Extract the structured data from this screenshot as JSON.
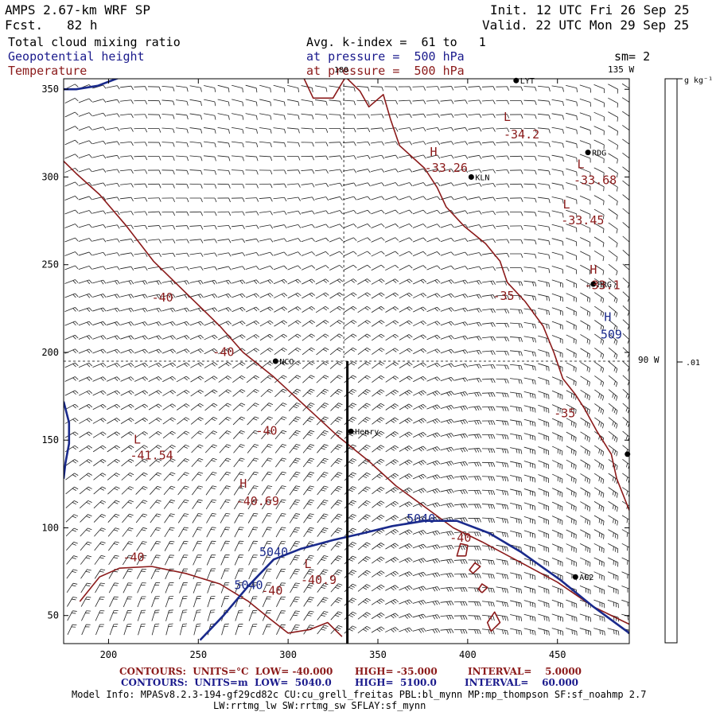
{
  "header": {
    "model": "AMPS 2.67-km WRF SP",
    "fcst_label": "Fcst.",
    "fcst_value": "82 h",
    "init": "Init. 12 UTC Fri 26 Sep 25",
    "valid": "Valid. 22 UTC Mon 29 Sep 25",
    "field1": "Total cloud mixing ratio",
    "field2": "Geopotential height",
    "field3": "Temperature",
    "avg": "Avg. k-index =  61 to   1",
    "pressure1": "at pressure =  500 hPa",
    "pressure2": "at pressure =  500 hPa",
    "sm": "sm= 2"
  },
  "colorbar": {
    "unit": "g kg⁻¹",
    "tick": ".01"
  },
  "grid_labels": {
    "top_180": "180",
    "top_135w": "135 W",
    "right_90w": "90 W"
  },
  "stations": [
    {
      "name": "LYT",
      "i": 427,
      "j": 355
    },
    {
      "name": "RDG",
      "i": 467,
      "j": 314
    },
    {
      "name": "KLN",
      "i": 402,
      "j": 300
    },
    {
      "name": "HRG",
      "i": 470,
      "j": 239
    },
    {
      "name": "NCO",
      "i": 293,
      "j": 195
    },
    {
      "name": "Henry",
      "i": 335,
      "j": 155
    },
    {
      "name": "AG2",
      "i": 460,
      "j": 72
    },
    {
      "name": "",
      "i": 489,
      "j": 142
    }
  ],
  "temp_labels": [
    {
      "text": "L",
      "i": 420,
      "j": 332
    },
    {
      "text": "-34.2",
      "i": 420,
      "j": 322
    },
    {
      "text": "H",
      "i": 379,
      "j": 312
    },
    {
      "text": "-33.26",
      "i": 376,
      "j": 303
    },
    {
      "text": "L",
      "i": 461,
      "j": 305
    },
    {
      "text": "-33.68",
      "i": 459,
      "j": 296
    },
    {
      "text": "L",
      "i": 453,
      "j": 282
    },
    {
      "text": "-33.45",
      "i": 452,
      "j": 273
    },
    {
      "text": "H",
      "i": 468,
      "j": 245
    },
    {
      "text": "-33.1",
      "i": 465,
      "j": 236
    },
    {
      "text": "-35",
      "i": 414,
      "j": 230
    },
    {
      "text": "-40",
      "i": 224,
      "j": 229
    },
    {
      "text": "-40",
      "i": 258,
      "j": 198
    },
    {
      "text": "-35",
      "i": 448,
      "j": 163
    },
    {
      "text": "-40",
      "i": 282,
      "j": 153
    },
    {
      "text": "L",
      "i": 214,
      "j": 148
    },
    {
      "text": "-41.54",
      "i": 212,
      "j": 139
    },
    {
      "text": "H",
      "i": 273,
      "j": 123
    },
    {
      "text": "-40.69",
      "i": 271,
      "j": 113
    },
    {
      "text": "-40",
      "i": 390,
      "j": 92
    },
    {
      "text": "-40",
      "i": 208,
      "j": 81
    },
    {
      "text": "L",
      "i": 309,
      "j": 77
    },
    {
      "text": "-40.9",
      "i": 307,
      "j": 68
    },
    {
      "text": "-40",
      "i": 285,
      "j": 62
    }
  ],
  "height_labels": [
    {
      "text": "H",
      "i": 476,
      "j": 218
    },
    {
      "text": "509",
      "i": 474,
      "j": 208
    },
    {
      "text": "5040",
      "i": 366,
      "j": 103
    },
    {
      "text": "5040",
      "i": 284,
      "j": 84
    },
    {
      "text": "5040",
      "i": 270,
      "j": 65
    }
  ],
  "chart_data": {
    "type": "contour_map",
    "fields": [
      "Total cloud mixing ratio",
      "Geopotential height",
      "Temperature"
    ],
    "x_ticks": [
      200,
      250,
      300,
      350,
      400,
      450
    ],
    "y_ticks": [
      50,
      100,
      150,
      200,
      250,
      300,
      350
    ],
    "xlim": [
      175,
      490
    ],
    "ylim": [
      34,
      356
    ],
    "colors": {
      "temperature": "#8b1a1a",
      "height": "#1a2a8c",
      "frame": "#000000"
    },
    "temperature_contours": [
      {
        "level": -40,
        "points": [
          [
            175,
            309
          ],
          [
            182,
            302
          ],
          [
            195,
            290
          ],
          [
            210,
            272
          ],
          [
            225,
            252
          ],
          [
            245,
            232
          ],
          [
            262,
            215
          ],
          [
            275,
            200
          ],
          [
            292,
            186
          ],
          [
            310,
            169
          ],
          [
            328,
            152
          ],
          [
            345,
            138
          ],
          [
            360,
            124
          ],
          [
            376,
            112
          ],
          [
            392,
            100
          ],
          [
            408,
            92
          ],
          [
            430,
            80
          ],
          [
            450,
            69
          ],
          [
            470,
            55
          ],
          [
            490,
            45
          ]
        ]
      },
      {
        "level": -40,
        "points": [
          [
            184,
            58
          ],
          [
            195,
            72
          ],
          [
            206,
            77
          ],
          [
            224,
            78
          ],
          [
            243,
            74
          ],
          [
            262,
            68
          ],
          [
            278,
            58
          ],
          [
            290,
            48
          ],
          [
            300,
            40
          ],
          [
            312,
            42
          ],
          [
            322,
            46
          ],
          [
            330,
            38
          ]
        ]
      },
      {
        "level": -35,
        "points": [
          [
            308,
            358
          ],
          [
            314,
            345
          ],
          [
            325,
            345
          ],
          [
            332,
            357
          ],
          [
            340,
            349
          ],
          [
            345,
            340
          ],
          [
            353,
            347
          ],
          [
            357,
            333
          ],
          [
            362,
            318
          ],
          [
            376,
            305
          ],
          [
            383,
            294
          ],
          [
            388,
            283
          ],
          [
            398,
            272
          ],
          [
            410,
            262
          ],
          [
            418,
            252
          ],
          [
            422,
            240
          ],
          [
            432,
            229
          ],
          [
            442,
            215
          ],
          [
            448,
            200
          ],
          [
            453,
            185
          ],
          [
            460,
            176
          ],
          [
            465,
            168
          ],
          [
            472,
            155
          ],
          [
            480,
            142
          ],
          [
            483,
            128
          ],
          [
            490,
            110
          ]
        ]
      },
      {
        "level": -35,
        "points": [
          [
            399,
            84
          ],
          [
            400,
            90
          ],
          [
            396,
            91
          ],
          [
            394,
            84
          ],
          [
            399,
            84
          ]
        ]
      },
      {
        "level": -35,
        "points": [
          [
            403,
            74
          ],
          [
            407,
            78
          ],
          [
            404,
            80
          ],
          [
            401,
            76
          ],
          [
            403,
            74
          ]
        ]
      },
      {
        "level": -35,
        "points": [
          [
            408,
            63
          ],
          [
            411,
            66
          ],
          [
            408,
            68
          ],
          [
            406,
            65
          ],
          [
            408,
            63
          ]
        ]
      },
      {
        "level": -35,
        "points": [
          [
            413,
            41
          ],
          [
            418,
            46
          ],
          [
            415,
            52
          ],
          [
            411,
            46
          ],
          [
            413,
            41
          ]
        ]
      }
    ],
    "height_contours": [
      {
        "level": 5040,
        "points": [
          [
            251,
            36
          ],
          [
            264,
            50
          ],
          [
            278,
            67
          ],
          [
            292,
            82
          ],
          [
            307,
            88
          ],
          [
            325,
            93
          ],
          [
            342,
            97
          ],
          [
            358,
            101
          ],
          [
            376,
            104
          ],
          [
            394,
            104
          ],
          [
            412,
            97
          ],
          [
            430,
            86
          ],
          [
            452,
            70
          ],
          [
            470,
            55
          ],
          [
            490,
            40
          ]
        ]
      },
      {
        "level": 5100,
        "points": [
          [
            175,
            172
          ],
          [
            178,
            160
          ],
          [
            178,
            148
          ],
          [
            176,
            137
          ],
          [
            175,
            128
          ]
        ]
      },
      {
        "level": 5100,
        "points": [
          [
            207,
            357
          ],
          [
            194,
            352
          ],
          [
            182,
            350
          ],
          [
            175,
            350
          ]
        ]
      }
    ],
    "cross_section": {
      "x_start": 333,
      "y_start": 195,
      "x_end": 333,
      "y_end": 34
    },
    "dashed_lines": [
      {
        "label": "180",
        "x": 331
      },
      {
        "label": "90 W",
        "y": 195
      }
    ]
  },
  "footer": {
    "row1_a": "CONTOURS:  UNITS=°C  LOW= -40.000",
    "row1_b": "HIGH= -35.000",
    "row1_c": "INTERVAL=    5.0000",
    "row2_a": "CONTOURS:  UNITS=m  LOW=  5040.0",
    "row2_b": "HIGH=  5100.0",
    "row2_c": "INTERVAL=    60.000",
    "model_info": "Model Info: MPASv8.2.3-194-gf29cd82c CU:cu_grell_freitas PBL:bl_mynn MP:mp_thompson SF:sf_noahmp 2.7",
    "model_info2": "LW:rrtmg_lw SW:rrtmg_sw SFLAY:sf_mynn"
  }
}
